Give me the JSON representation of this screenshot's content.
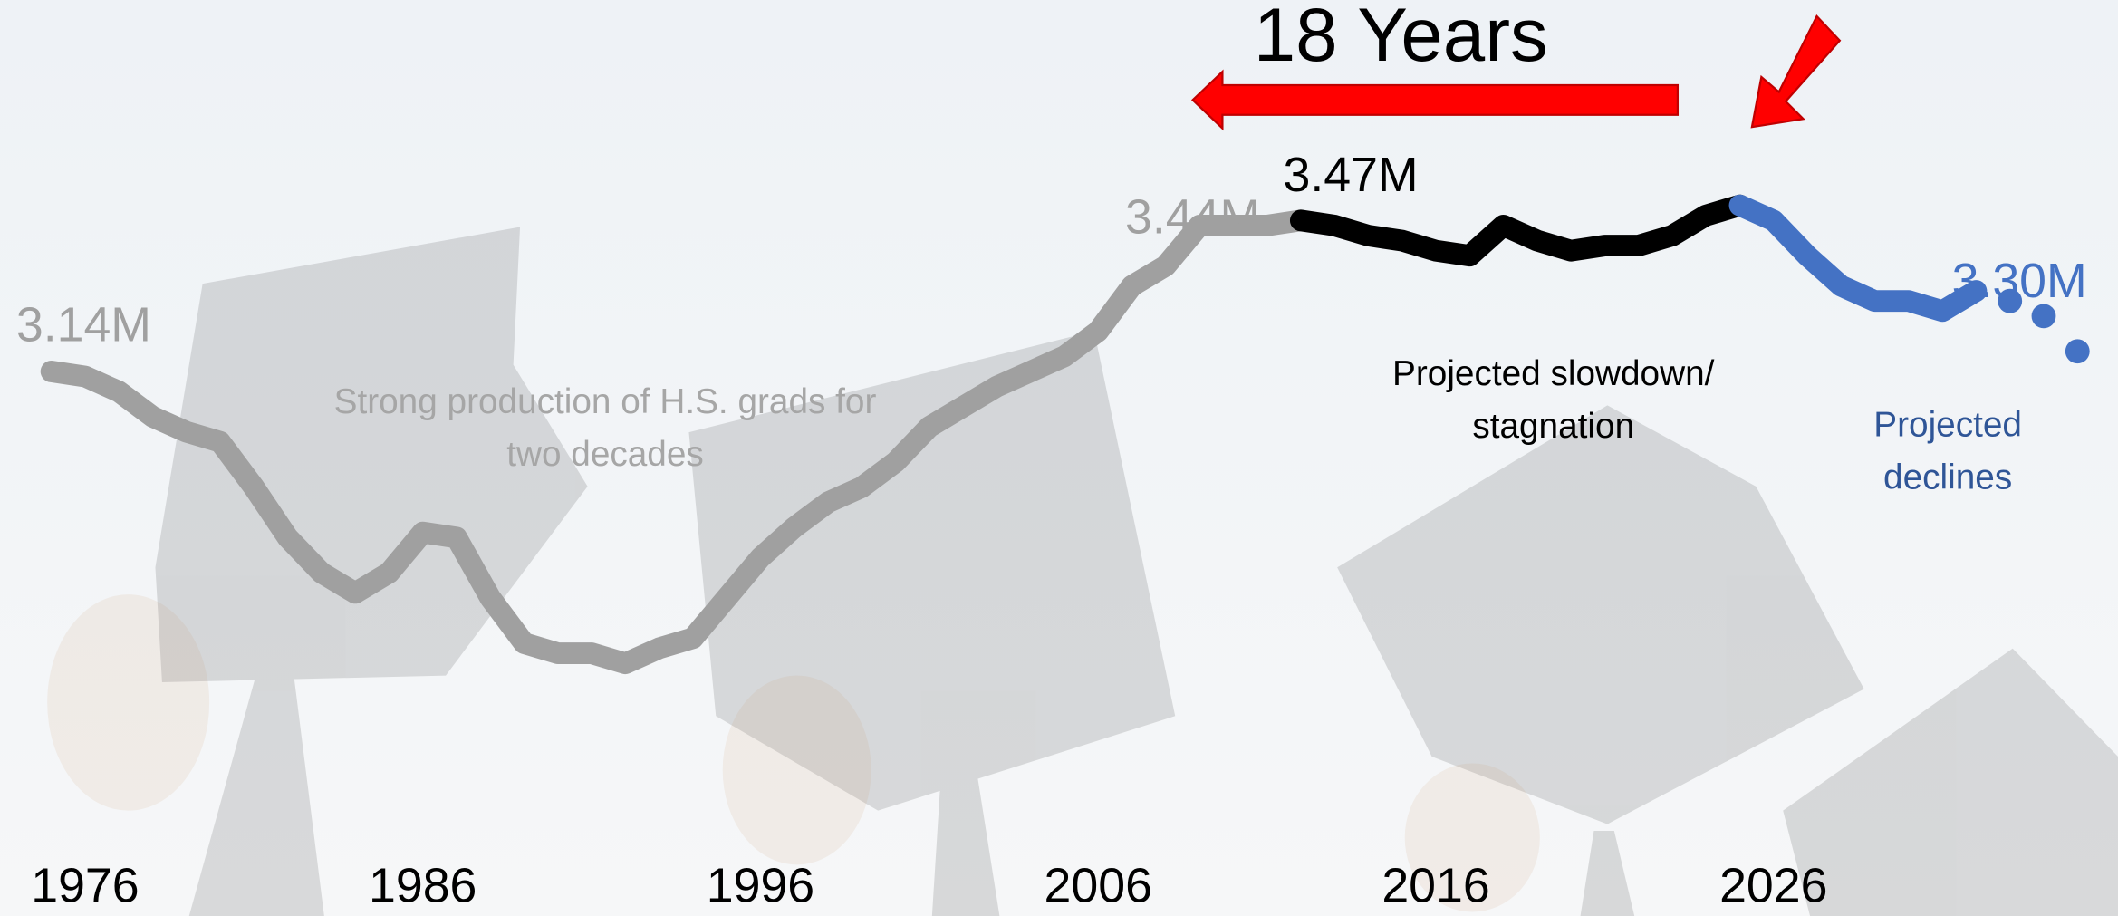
{
  "chart_data": {
    "type": "line",
    "x": [
      1975,
      1976,
      1977,
      1978,
      1979,
      1980,
      1981,
      1982,
      1983,
      1984,
      1985,
      1986,
      1987,
      1988,
      1989,
      1990,
      1991,
      1992,
      1993,
      1994,
      1995,
      1996,
      1997,
      1998,
      1999,
      2000,
      2001,
      2002,
      2003,
      2004,
      2005,
      2006,
      2007,
      2008,
      2009,
      2010,
      2011,
      2012,
      2013,
      2014,
      2015,
      2016,
      2017,
      2018,
      2019,
      2020,
      2021,
      2022,
      2023,
      2024,
      2025,
      2026,
      2027,
      2028,
      2029,
      2030,
      2031,
      2032,
      2033,
      2034,
      2035
    ],
    "xticks": [
      1976,
      1986,
      1996,
      2006,
      2016,
      2026
    ],
    "series": [
      {
        "color": "#a0a0a0",
        "style": "line",
        "values": [
          3.14,
          3.13,
          3.1,
          3.05,
          3.02,
          3.0,
          2.91,
          2.81,
          2.74,
          2.7,
          2.74,
          2.82,
          2.81,
          2.69,
          2.6,
          2.58,
          2.58,
          2.56,
          2.59,
          2.61,
          2.69,
          2.77,
          2.83,
          2.88,
          2.91,
          2.96,
          3.03,
          3.07,
          3.11,
          3.14,
          3.17,
          3.22,
          3.31,
          3.35,
          3.43,
          3.43,
          3.43,
          3.44,
          null,
          null,
          null,
          null,
          null,
          null,
          null,
          null,
          null,
          null,
          null,
          null,
          null,
          null,
          null,
          null,
          null,
          null,
          null,
          null,
          null,
          null,
          null
        ],
        "value_labels": [
          "3.14M",
          null,
          null,
          null,
          null,
          null,
          null,
          null,
          null,
          null,
          null,
          null,
          null,
          null,
          null,
          null,
          null,
          null,
          null,
          null,
          null,
          null,
          null,
          null,
          null,
          null,
          null,
          null,
          null,
          null,
          null,
          null,
          null,
          null,
          null,
          null,
          null,
          "3.44M",
          null,
          null,
          null,
          null,
          null,
          null,
          null,
          null,
          null,
          null,
          null,
          null,
          null,
          null,
          null,
          null,
          null,
          null,
          null,
          null,
          null,
          null,
          null
        ]
      },
      {
        "color": "#000000",
        "style": "line",
        "values": [
          null,
          null,
          null,
          null,
          null,
          null,
          null,
          null,
          null,
          null,
          null,
          null,
          null,
          null,
          null,
          null,
          null,
          null,
          null,
          null,
          null,
          null,
          null,
          null,
          null,
          null,
          null,
          null,
          null,
          null,
          null,
          null,
          null,
          null,
          null,
          null,
          null,
          3.44,
          3.43,
          3.41,
          3.4,
          3.38,
          3.37,
          3.43,
          3.4,
          3.38,
          3.39,
          3.39,
          3.41,
          3.45,
          3.47,
          null,
          null,
          null,
          null,
          null,
          null,
          null,
          null,
          null,
          null
        ],
        "value_labels": [
          null,
          null,
          null,
          null,
          null,
          null,
          null,
          null,
          null,
          null,
          null,
          null,
          null,
          null,
          null,
          null,
          null,
          null,
          null,
          null,
          null,
          null,
          null,
          null,
          null,
          null,
          null,
          null,
          null,
          null,
          null,
          null,
          null,
          null,
          null,
          null,
          null,
          null,
          null,
          null,
          null,
          null,
          null,
          null,
          null,
          null,
          null,
          null,
          null,
          null,
          "3.47M",
          null,
          null,
          null,
          null,
          null,
          null,
          null,
          null,
          null,
          null
        ]
      },
      {
        "color": "#4472c4",
        "style": "line",
        "values": [
          null,
          null,
          null,
          null,
          null,
          null,
          null,
          null,
          null,
          null,
          null,
          null,
          null,
          null,
          null,
          null,
          null,
          null,
          null,
          null,
          null,
          null,
          null,
          null,
          null,
          null,
          null,
          null,
          null,
          null,
          null,
          null,
          null,
          null,
          null,
          null,
          null,
          null,
          null,
          null,
          null,
          null,
          null,
          null,
          null,
          null,
          null,
          null,
          null,
          null,
          3.47,
          3.44,
          3.37,
          3.31,
          3.28,
          3.28,
          3.26,
          3.3,
          null,
          null,
          null
        ],
        "value_labels": [
          null,
          null,
          null,
          null,
          null,
          null,
          null,
          null,
          null,
          null,
          null,
          null,
          null,
          null,
          null,
          null,
          null,
          null,
          null,
          null,
          null,
          null,
          null,
          null,
          null,
          null,
          null,
          null,
          null,
          null,
          null,
          null,
          null,
          null,
          null,
          null,
          null,
          null,
          null,
          null,
          null,
          null,
          null,
          null,
          null,
          null,
          null,
          null,
          null,
          null,
          null,
          null,
          null,
          null,
          null,
          null,
          null,
          "3.30M",
          null,
          null,
          null
        ]
      },
      {
        "color": "#4472c4",
        "style": "dots",
        "values": [
          null,
          null,
          null,
          null,
          null,
          null,
          null,
          null,
          null,
          null,
          null,
          null,
          null,
          null,
          null,
          null,
          null,
          null,
          null,
          null,
          null,
          null,
          null,
          null,
          null,
          null,
          null,
          null,
          null,
          null,
          null,
          null,
          null,
          null,
          null,
          null,
          null,
          null,
          null,
          null,
          null,
          null,
          null,
          null,
          null,
          null,
          null,
          null,
          null,
          null,
          null,
          null,
          null,
          null,
          null,
          null,
          null,
          null,
          3.28,
          3.25,
          3.18
        ]
      }
    ],
    "annotations": [
      {
        "text": [
          "18 Years"
        ],
        "color": "#000000"
      },
      {
        "text": [
          "Strong production of H.S. grads for",
          "two decades"
        ],
        "color": "#a6a6a6"
      },
      {
        "text": [
          "Projected slowdown/",
          "stagnation"
        ],
        "color": "#000000"
      },
      {
        "text": [
          "Projected",
          "declines"
        ],
        "color": "#2f5597"
      }
    ]
  }
}
